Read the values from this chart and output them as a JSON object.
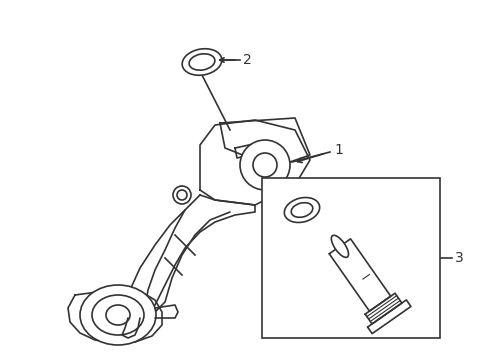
{
  "background_color": "#ffffff",
  "line_color": "#333333",
  "line_width": 1.2,
  "label_1": "1",
  "label_2": "2",
  "label_3": "3",
  "fig_width": 4.89,
  "fig_height": 3.6,
  "dpi": 100
}
